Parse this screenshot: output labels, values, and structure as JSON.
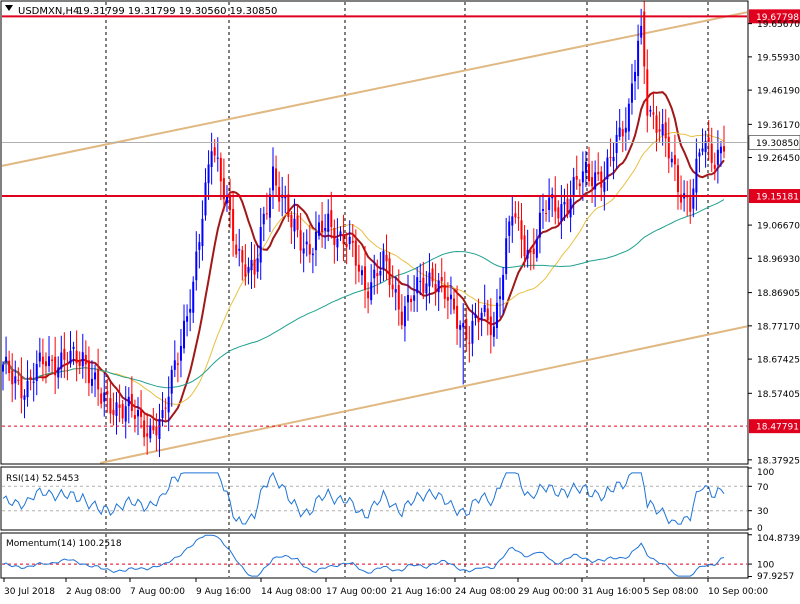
{
  "header": {
    "symbol": "USDMXN,H4",
    "ohlc": "19.31799 19.31799 19.30560 19.30850"
  },
  "colors": {
    "bull": "#0000ff",
    "bear": "#ff0000",
    "ma_fast": "#e8c040",
    "ma_mid": "#a01818",
    "ma_slow": "#20a090",
    "channel": "#e0b882",
    "level": "#e0001e",
    "vline": "#000000",
    "indicator": "#1f74d6",
    "grid": "#c8c8c8",
    "axis": "#000000",
    "price_box": "#e0001e",
    "current_box": "#ffffff"
  },
  "chart_data": [
    {
      "panel": "price",
      "type": "candlestick",
      "symbol": "USDMXN",
      "timeframe": "H4",
      "ylim": [
        18.37,
        19.72
      ],
      "y_ticks": [
        19.6567,
        19.5593,
        19.4619,
        19.3617,
        19.2645,
        19.0667,
        18.9693,
        18.86905,
        18.7717,
        18.67425,
        18.57405,
        18.37925
      ],
      "y_tick_labels": [
        "19.65670",
        "19.55930",
        "19.46190",
        "19.36170",
        "19.26450",
        "19.06670",
        "18.96930",
        "18.86905",
        "18.77170",
        "18.67425",
        "18.57405",
        "18.37925"
      ],
      "x_tick_labels": [
        "30 Jul 2018",
        "2 Aug 08:00",
        "7 Aug 00:00",
        "9 Aug 16:00",
        "14 Aug 08:00",
        "17 Aug 00:00",
        "21 Aug 16:00",
        "24 Aug 08:00",
        "29 Aug 00:00",
        "31 Aug 16:00",
        "5 Sep 08:00",
        "10 Sep 00:00"
      ],
      "horizontal_levels": [
        {
          "value": 19.67798,
          "label": "19.67798",
          "style": "solid"
        },
        {
          "value": 19.15181,
          "label": "19.15181",
          "style": "solid"
        },
        {
          "value": 18.47791,
          "label": "18.47791",
          "style": "dashed"
        }
      ],
      "current_price": {
        "value": 19.3085,
        "label": "19.30850"
      },
      "channel": {
        "upper": {
          "from": 19.24,
          "to": 19.69
        },
        "lower": {
          "from": 18.37,
          "to": 18.77
        }
      },
      "moving_averages": [
        "fast",
        "mid",
        "slow"
      ]
    },
    {
      "panel": "rsi",
      "type": "line",
      "label": "RSI(14) 52.5453",
      "ylim": [
        0,
        100
      ],
      "y_ticks": [
        100,
        70,
        30,
        0
      ],
      "y_tick_labels": [
        "100",
        "70",
        "30",
        "0"
      ],
      "levels": [
        70,
        30
      ]
    },
    {
      "panel": "momentum",
      "type": "line",
      "label": "Momentum(14) 100.2518",
      "ylim": [
        97.85,
        105.0
      ],
      "y_ticks": [
        104.8739,
        100,
        97.9257
      ],
      "y_tick_labels": [
        "104.8739",
        "100",
        "97.9257"
      ],
      "levels": [
        100
      ]
    }
  ]
}
